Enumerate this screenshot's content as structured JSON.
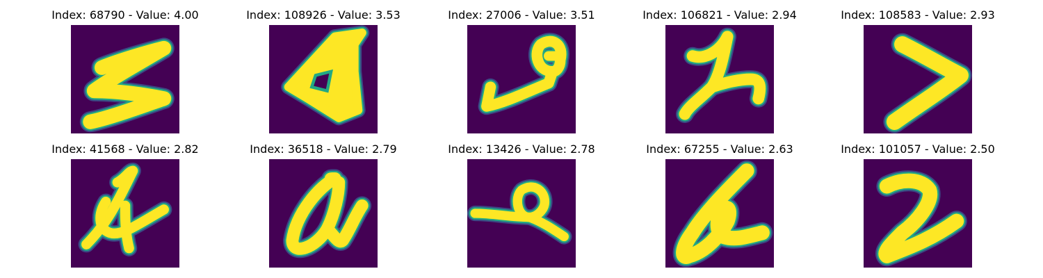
{
  "colors": {
    "background": "#440154",
    "stroke_core": "#fde725",
    "stroke_edge": "#22a884",
    "stroke_mid": "#3b528b"
  },
  "panels": [
    {
      "index": "68790",
      "value": "4.00",
      "title": "Index: 68790 - Value: 4.00",
      "glyph": "zigzag-s"
    },
    {
      "index": "108926",
      "value": "3.53",
      "title": "Index: 108926 - Value: 3.53",
      "glyph": "triangle-blob"
    },
    {
      "index": "27006",
      "value": "3.51",
      "title": "Index: 27006 - Value: 3.51",
      "glyph": "hook-loop"
    },
    {
      "index": "106821",
      "value": "2.94",
      "title": "Index: 106821 - Value: 2.94",
      "glyph": "lambda-curl"
    },
    {
      "index": "108583",
      "value": "2.93",
      "title": "Index: 108583 - Value: 2.93",
      "glyph": "chevron-right"
    },
    {
      "index": "41568",
      "value": "2.82",
      "title": "Index: 41568 - Value: 2.82",
      "glyph": "four-shape"
    },
    {
      "index": "36518",
      "value": "2.79",
      "title": "Index: 36518 - Value: 2.79",
      "glyph": "loop-alpha"
    },
    {
      "index": "13426",
      "value": "2.78",
      "title": "Index: 13426 - Value: 2.78",
      "glyph": "loop-tail"
    },
    {
      "index": "67255",
      "value": "2.63",
      "title": "Index: 67255 - Value: 2.63",
      "glyph": "slanted-alpha"
    },
    {
      "index": "101057",
      "value": "2.50",
      "title": "Index: 101057 - Value: 2.50",
      "glyph": "two-shape"
    }
  ]
}
